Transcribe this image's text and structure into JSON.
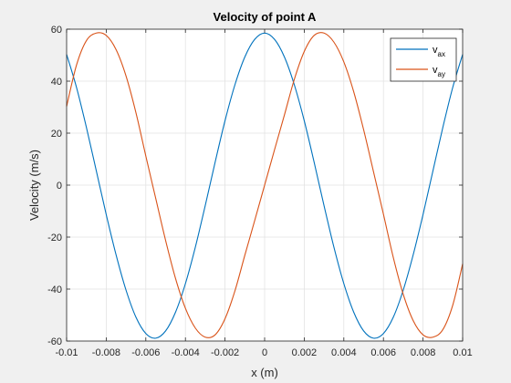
{
  "chart_data": {
    "type": "line",
    "title": "Velocity of point A",
    "xlabel": "x (m)",
    "ylabel": "Velocity (m/s)",
    "xlim": [
      -0.01,
      0.01
    ],
    "ylim": [
      -60,
      60
    ],
    "xticks": [
      -0.01,
      -0.008,
      -0.006,
      -0.004,
      -0.002,
      0,
      0.002,
      0.004,
      0.006,
      0.008,
      0.01
    ],
    "xtick_labels": [
      "-0.01",
      "-0.008",
      "-0.006",
      "-0.004",
      "-0.002",
      "0",
      "0.002",
      "0.004",
      "0.006",
      "0.008",
      "0.01"
    ],
    "yticks": [
      -60,
      -40,
      -20,
      0,
      20,
      40,
      60
    ],
    "ytick_labels": [
      "-60",
      "-40",
      "-20",
      "0",
      "20",
      "40",
      "60"
    ],
    "grid": true,
    "legend_position": "top-right",
    "series": [
      {
        "name": "v",
        "name_subscript": "ax",
        "color": "#0072BD",
        "x": [
          -0.01,
          -0.0095,
          -0.009,
          -0.0085,
          -0.008,
          -0.0075,
          -0.007,
          -0.0065,
          -0.006,
          -0.0055,
          -0.005,
          -0.0045,
          -0.004,
          -0.0035,
          -0.003,
          -0.0025,
          -0.002,
          -0.0015,
          -0.001,
          -0.0005,
          0,
          0.0005,
          0.001,
          0.0015,
          0.002,
          0.0025,
          0.003,
          0.0035,
          0.004,
          0.0045,
          0.005,
          0.0055,
          0.006,
          0.0065,
          0.007,
          0.0075,
          0.008,
          0.0085,
          0.009,
          0.0095,
          0.01
        ],
        "y": [
          50.3,
          37.6,
          22.2,
          5.5,
          -11.3,
          -26.9,
          -40.4,
          -50.8,
          -57.1,
          -58.9,
          -56.1,
          -48.9,
          -37.9,
          -23.9,
          -7.9,
          8.8,
          24.8,
          38.6,
          49.3,
          56.1,
          58.5,
          56.1,
          49.3,
          38.6,
          24.8,
          8.8,
          -7.9,
          -23.9,
          -37.9,
          -48.9,
          -56.1,
          -58.9,
          -57.1,
          -50.8,
          -40.4,
          -26.9,
          -11.3,
          5.5,
          22.2,
          37.6,
          50.3
        ]
      },
      {
        "name": "v",
        "name_subscript": "ay",
        "color": "#D95319",
        "x": [
          -0.01,
          -0.0095,
          -0.009,
          -0.0085,
          -0.008,
          -0.0075,
          -0.007,
          -0.0065,
          -0.006,
          -0.0055,
          -0.005,
          -0.0045,
          -0.004,
          -0.0035,
          -0.003,
          -0.0025,
          -0.002,
          -0.0015,
          -0.001,
          -0.0005,
          0,
          0.0005,
          0.001,
          0.0015,
          0.002,
          0.0025,
          0.003,
          0.0035,
          0.004,
          0.0045,
          0.005,
          0.0055,
          0.006,
          0.0065,
          0.007,
          0.0075,
          0.008,
          0.0085,
          0.009,
          0.0095,
          0.01
        ],
        "y": [
          30.3,
          46.2,
          55.6,
          58.5,
          57.6,
          52.1,
          42.0,
          27.9,
          11.2,
          -5.1,
          -21.3,
          -35.9,
          -47.4,
          -55.0,
          -58.5,
          -57.6,
          -51.4,
          -40.7,
          -27.0,
          -13.6,
          0,
          13.6,
          27.0,
          40.7,
          51.4,
          57.6,
          58.5,
          55.0,
          47.4,
          35.9,
          21.3,
          5.1,
          -11.2,
          -27.9,
          -42.0,
          -52.1,
          -57.6,
          -58.5,
          -55.6,
          -46.2,
          -30.3
        ]
      }
    ]
  }
}
